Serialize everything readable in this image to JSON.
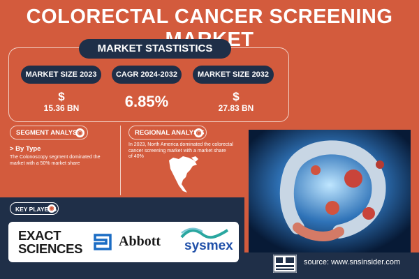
{
  "title": "COLORECTAL CANCER SCREENING MARKET",
  "stats_title": "MARKET STASTISTICS",
  "metrics": [
    {
      "label": "MARKET SIZE 2023",
      "currency": "$",
      "value": "15.36 BN"
    },
    {
      "label": "CAGR 2024-2032",
      "value": "6.85%"
    },
    {
      "label": "MARKET SIZE 2032",
      "currency": "$",
      "value": "27.83 BN"
    }
  ],
  "segment": {
    "title": "SEGMENT ANALYSIS",
    "subtitle": "> By Type",
    "text_lines": [
      "The Colonoscopy segment dominated the",
      "market with a 50% market share"
    ]
  },
  "regional": {
    "title": "REGIONAL ANALYSIS",
    "text_lines": [
      "In 2023, North America dominated the colorectal",
      "cancer screening market with a market share",
      "of 40%"
    ]
  },
  "key_players": {
    "title": "KEY PLAYERS",
    "logos": [
      "EXACT",
      "SCIENCES",
      "Abbott",
      "sysmex"
    ]
  },
  "source": "source: www.snsinsider.com",
  "colors": {
    "background": "#d35b3d",
    "navy": "#1f2f48"
  }
}
